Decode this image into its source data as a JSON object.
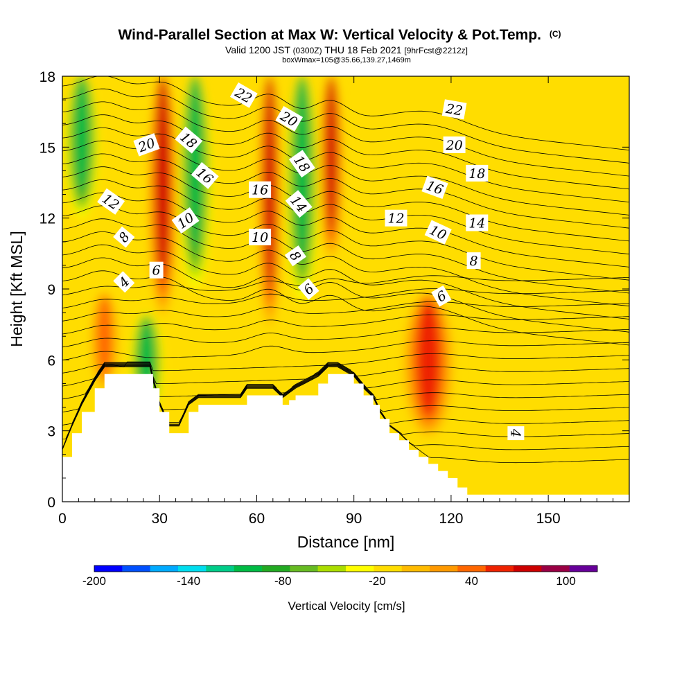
{
  "chart_data": {
    "type": "heatmap",
    "title": "Wind-Parallel Section at Max W: Vertical Velocity & Pot.Temp.",
    "title_mark": "(C)",
    "subtitle_parts": [
      "Valid 1200 JST ",
      "(0300Z)",
      " THU 18 Feb 2021 ",
      "[9hrFcst@2212z]"
    ],
    "subtitle2": "boxWmax=105@35.66,139.27,1469m",
    "xlabel": "Distance [nm]",
    "ylabel": "Height [Kft MSL]",
    "xlim": [
      0,
      175
    ],
    "ylim": [
      0,
      18
    ],
    "xticks": [
      0,
      30,
      60,
      90,
      120,
      150
    ],
    "yticks": [
      0,
      3,
      6,
      9,
      12,
      15,
      18
    ],
    "x_tick_labels": [
      "0",
      "30",
      "60",
      "90",
      "120",
      "150"
    ],
    "y_tick_labels": [
      "0",
      "3",
      "6",
      "9",
      "12",
      "15",
      "18"
    ],
    "colorbar": {
      "label": "Vertical Velocity [cm/s]",
      "range": [
        -200,
        120
      ],
      "step": 20,
      "tick_values": [
        -200,
        -140,
        -80,
        -20,
        40,
        100
      ],
      "tick_labels": [
        "-200",
        "-140",
        "-80",
        "-20",
        "40",
        "100"
      ],
      "colors": [
        "#0000ff",
        "#0050ff",
        "#00aaff",
        "#00ddee",
        "#00cc88",
        "#00bb44",
        "#22aa22",
        "#66bb22",
        "#aadd00",
        "#ffff00",
        "#ffdd00",
        "#ffbb00",
        "#ff9900",
        "#ff6600",
        "#ee2200",
        "#cc0000",
        "#990044",
        "#660099"
      ]
    },
    "background_color": "#ffdd00",
    "vertical_velocity_features": [
      {
        "kind": "updraft",
        "x_range": [
          26,
          36
        ],
        "y_range": [
          7.5,
          18
        ],
        "peak_cm_s": 110
      },
      {
        "kind": "downdraft",
        "x_range": [
          36,
          46
        ],
        "y_range": [
          9,
          18
        ],
        "peak_cm_s": -90
      },
      {
        "kind": "updraft",
        "x_range": [
          60,
          68
        ],
        "y_range": [
          7,
          18
        ],
        "peak_cm_s": 100
      },
      {
        "kind": "downdraft",
        "x_range": [
          69,
          79
        ],
        "y_range": [
          8.5,
          18
        ],
        "peak_cm_s": -90
      },
      {
        "kind": "updraft",
        "x_range": [
          79,
          87
        ],
        "y_range": [
          10,
          18
        ],
        "peak_cm_s": 110
      },
      {
        "kind": "downdraft",
        "x_range": [
          1,
          11
        ],
        "y_range": [
          12,
          18
        ],
        "peak_cm_s": -80
      },
      {
        "kind": "downdraft",
        "x_range": [
          21,
          31
        ],
        "y_range": [
          3.5,
          8
        ],
        "peak_cm_s": -90
      },
      {
        "kind": "updraft",
        "x_range": [
          8,
          18
        ],
        "y_range": [
          4.5,
          9
        ],
        "peak_cm_s": 60
      },
      {
        "kind": "updraft",
        "x_range": [
          104,
          122
        ],
        "y_range": [
          2.5,
          9
        ],
        "peak_cm_s": 80
      }
    ],
    "terrain_height_kft": {
      "x": [
        0,
        3,
        6,
        10,
        13,
        27,
        28,
        30,
        33,
        36,
        39,
        42,
        55,
        57,
        65,
        68,
        70,
        72,
        79,
        82,
        85,
        90,
        93,
        96,
        98,
        101,
        104,
        107,
        110,
        113,
        116,
        119,
        122,
        125,
        175
      ],
      "y": [
        1.9,
        2.9,
        3.8,
        4.8,
        5.4,
        5.4,
        4.8,
        3.8,
        2.9,
        2.9,
        3.8,
        4.1,
        4.1,
        4.5,
        4.5,
        4.1,
        4.3,
        4.5,
        5.0,
        5.4,
        5.4,
        5.0,
        4.5,
        4.1,
        3.5,
        2.9,
        2.6,
        2.2,
        1.9,
        1.6,
        1.3,
        1.0,
        0.6,
        0.3,
        0.3
      ]
    },
    "potential_temperature_contour_labels": [
      {
        "text": "4",
        "x": 19,
        "y": 9.3,
        "rot": -45
      },
      {
        "text": "6",
        "x": 29,
        "y": 9.8,
        "rot": 0
      },
      {
        "text": "8",
        "x": 19,
        "y": 11.2,
        "rot": -50
      },
      {
        "text": "10",
        "x": 38,
        "y": 11.9,
        "rot": -35
      },
      {
        "text": "12",
        "x": 15,
        "y": 12.7,
        "rot": 35
      },
      {
        "text": "16",
        "x": 44,
        "y": 13.8,
        "rot": 40
      },
      {
        "text": "18",
        "x": 39,
        "y": 15.3,
        "rot": 40
      },
      {
        "text": "20",
        "x": 26,
        "y": 15.1,
        "rot": -20
      },
      {
        "text": "22",
        "x": 56,
        "y": 17.2,
        "rot": 30
      },
      {
        "text": "10",
        "x": 61,
        "y": 11.2,
        "rot": 0
      },
      {
        "text": "16",
        "x": 61,
        "y": 13.2,
        "rot": 0
      },
      {
        "text": "20",
        "x": 70,
        "y": 16.2,
        "rot": 30
      },
      {
        "text": "18",
        "x": 74,
        "y": 14.3,
        "rot": 55
      },
      {
        "text": "14",
        "x": 73,
        "y": 12.6,
        "rot": 50
      },
      {
        "text": "8",
        "x": 72,
        "y": 10.4,
        "rot": 55
      },
      {
        "text": "6",
        "x": 76,
        "y": 9.0,
        "rot": -40
      },
      {
        "text": "12",
        "x": 103,
        "y": 12.0,
        "rot": 0
      },
      {
        "text": "10",
        "x": 116,
        "y": 11.4,
        "rot": 25
      },
      {
        "text": "8",
        "x": 127,
        "y": 10.2,
        "rot": 0
      },
      {
        "text": "6",
        "x": 117,
        "y": 8.7,
        "rot": -30
      },
      {
        "text": "14",
        "x": 128,
        "y": 11.8,
        "rot": 0
      },
      {
        "text": "16",
        "x": 115,
        "y": 13.3,
        "rot": 20
      },
      {
        "text": "18",
        "x": 128,
        "y": 13.9,
        "rot": 0
      },
      {
        "text": "20",
        "x": 121,
        "y": 15.1,
        "rot": 0
      },
      {
        "text": "22",
        "x": 121,
        "y": 16.6,
        "rot": 10
      },
      {
        "text": "4",
        "x": 140,
        "y": 2.9,
        "rot": 90
      }
    ]
  }
}
